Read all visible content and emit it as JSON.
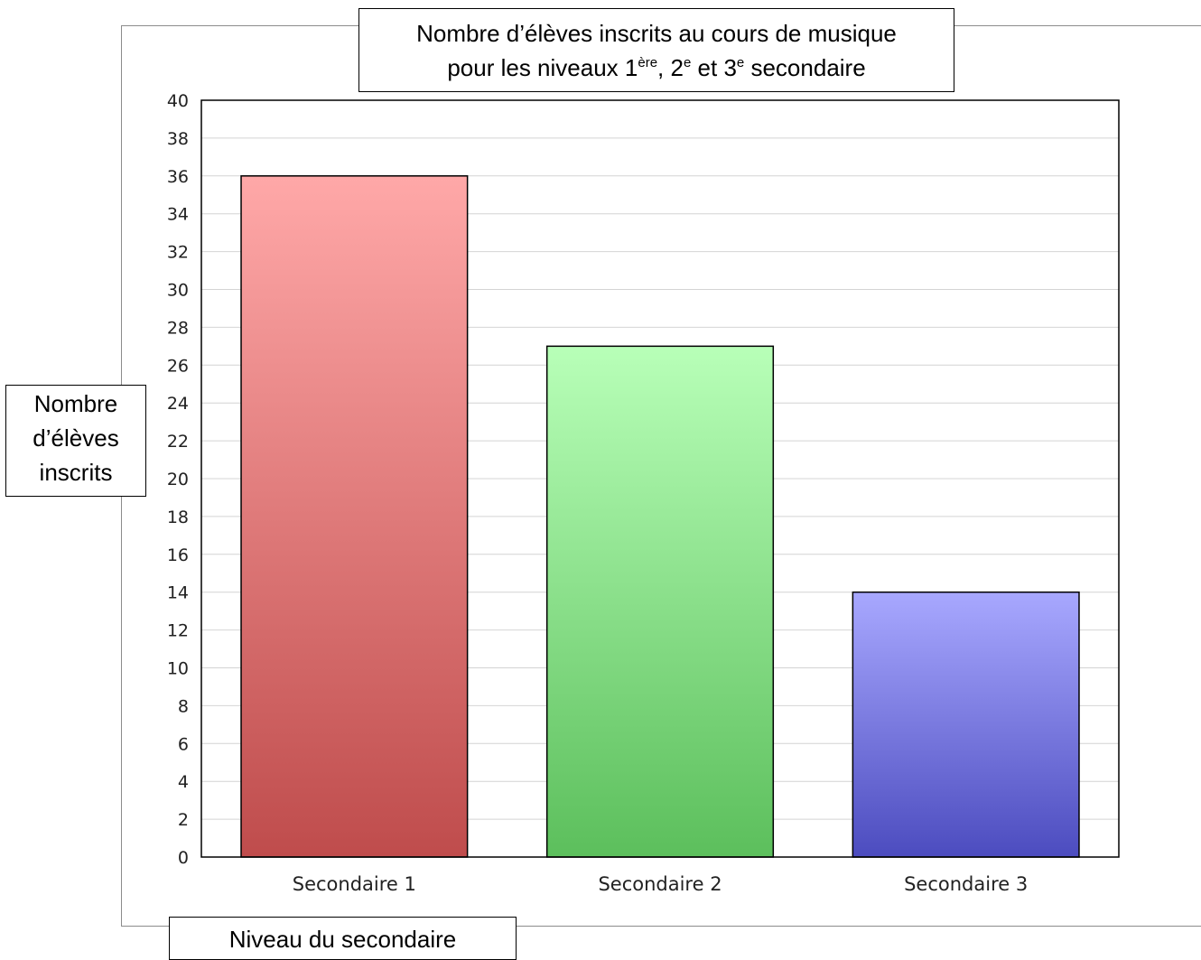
{
  "chart_data": {
    "type": "bar",
    "title": {
      "line1": "Nombre d’élèves inscrits au cours de musique",
      "line2_prefix": "pour les niveaux 1",
      "sup1": "ère",
      "mid1": ", 2",
      "sup2": "e",
      "mid2": " et 3",
      "sup3": "e",
      "suffix": " secondaire"
    },
    "ylabel_lines": [
      "Nombre",
      "d’élèves",
      "inscrits"
    ],
    "xlabel": "Niveau du secondaire",
    "categories": [
      "Secondaire 1",
      "Secondaire 2",
      "Secondaire 3"
    ],
    "values": [
      36,
      27,
      14
    ],
    "colors": [
      {
        "top": "#ffa8a8",
        "bottom": "#bf4c4c"
      },
      {
        "top": "#b8ffb8",
        "bottom": "#5cbf5c"
      },
      {
        "top": "#a8a8ff",
        "bottom": "#4c4cbf"
      }
    ],
    "ylim": [
      0,
      40
    ],
    "ytick_step": 2,
    "grid": true
  }
}
